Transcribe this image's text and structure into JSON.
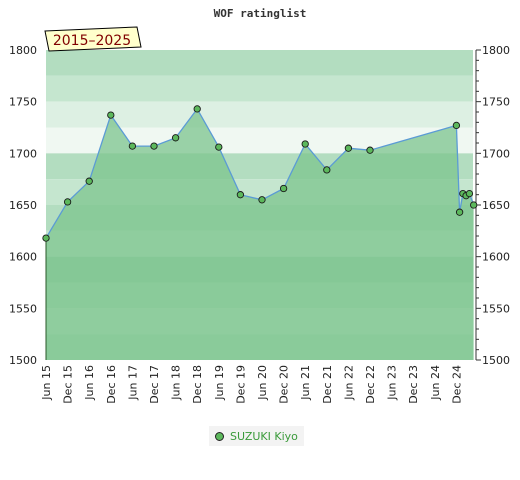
{
  "chart_data": {
    "type": "area",
    "title": "WOF ratinglist",
    "period_badge": "2015–2025",
    "xlabel": "",
    "ylabel": "",
    "ylim": [
      1500,
      1800
    ],
    "y_ticks": [
      1500,
      1550,
      1600,
      1650,
      1700,
      1750,
      1800
    ],
    "x_ticks": [
      "Jun 15",
      "Dec 15",
      "Jun 16",
      "Dec 16",
      "Jun 17",
      "Dec 17",
      "Jun 18",
      "Dec 18",
      "Jun 19",
      "Dec 19",
      "Jun 20",
      "Dec 20",
      "Jun 21",
      "Dec 21",
      "Jun 22",
      "Dec 22",
      "Jun 23",
      "Dec 23",
      "Jun 24",
      "Dec 24"
    ],
    "legend_position": "bottom-center",
    "grid": true,
    "series": [
      {
        "name": "SUZUKI Kiyo",
        "color": "#5cb85c",
        "line_color": "#5b9bd5",
        "fill_color": "#7cc48e",
        "points": [
          {
            "x": 0.0,
            "y": 1618
          },
          {
            "x": 1.0,
            "y": 1653
          },
          {
            "x": 2.0,
            "y": 1673
          },
          {
            "x": 3.0,
            "y": 1737
          },
          {
            "x": 4.0,
            "y": 1707
          },
          {
            "x": 5.0,
            "y": 1707
          },
          {
            "x": 6.0,
            "y": 1715
          },
          {
            "x": 7.0,
            "y": 1743
          },
          {
            "x": 8.0,
            "y": 1706
          },
          {
            "x": 9.0,
            "y": 1660
          },
          {
            "x": 10.0,
            "y": 1655
          },
          {
            "x": 11.0,
            "y": 1666
          },
          {
            "x": 12.0,
            "y": 1709
          },
          {
            "x": 13.0,
            "y": 1684
          },
          {
            "x": 14.0,
            "y": 1705
          },
          {
            "x": 15.0,
            "y": 1703
          },
          {
            "x": 19.0,
            "y": 1727
          },
          {
            "x": 19.15,
            "y": 1643
          },
          {
            "x": 19.3,
            "y": 1661
          },
          {
            "x": 19.45,
            "y": 1659
          },
          {
            "x": 19.6,
            "y": 1661
          },
          {
            "x": 19.8,
            "y": 1650
          }
        ]
      }
    ],
    "bands": [
      {
        "from": 1775,
        "to": 1800,
        "color": "#b3ddc0"
      },
      {
        "from": 1750,
        "to": 1775,
        "color": "#c5e6cf"
      },
      {
        "from": 1725,
        "to": 1750,
        "color": "#ddf0e3"
      },
      {
        "from": 1700,
        "to": 1725,
        "color": "#f0f8f2"
      },
      {
        "from": 1675,
        "to": 1700,
        "color": "#b3ddc0"
      },
      {
        "from": 1650,
        "to": 1675,
        "color": "#c5e6cf"
      },
      {
        "from": 1625,
        "to": 1650,
        "color": "#b3ddc0"
      },
      {
        "from": 1600,
        "to": 1625,
        "color": "#c5e6cf"
      },
      {
        "from": 1575,
        "to": 1600,
        "color": "#a0d4b0"
      },
      {
        "from": 1550,
        "to": 1575,
        "color": "#b3ddc0"
      },
      {
        "from": 1525,
        "to": 1550,
        "color": "#c5e6cf"
      },
      {
        "from": 1500,
        "to": 1525,
        "color": "#b3ddc0"
      }
    ]
  }
}
